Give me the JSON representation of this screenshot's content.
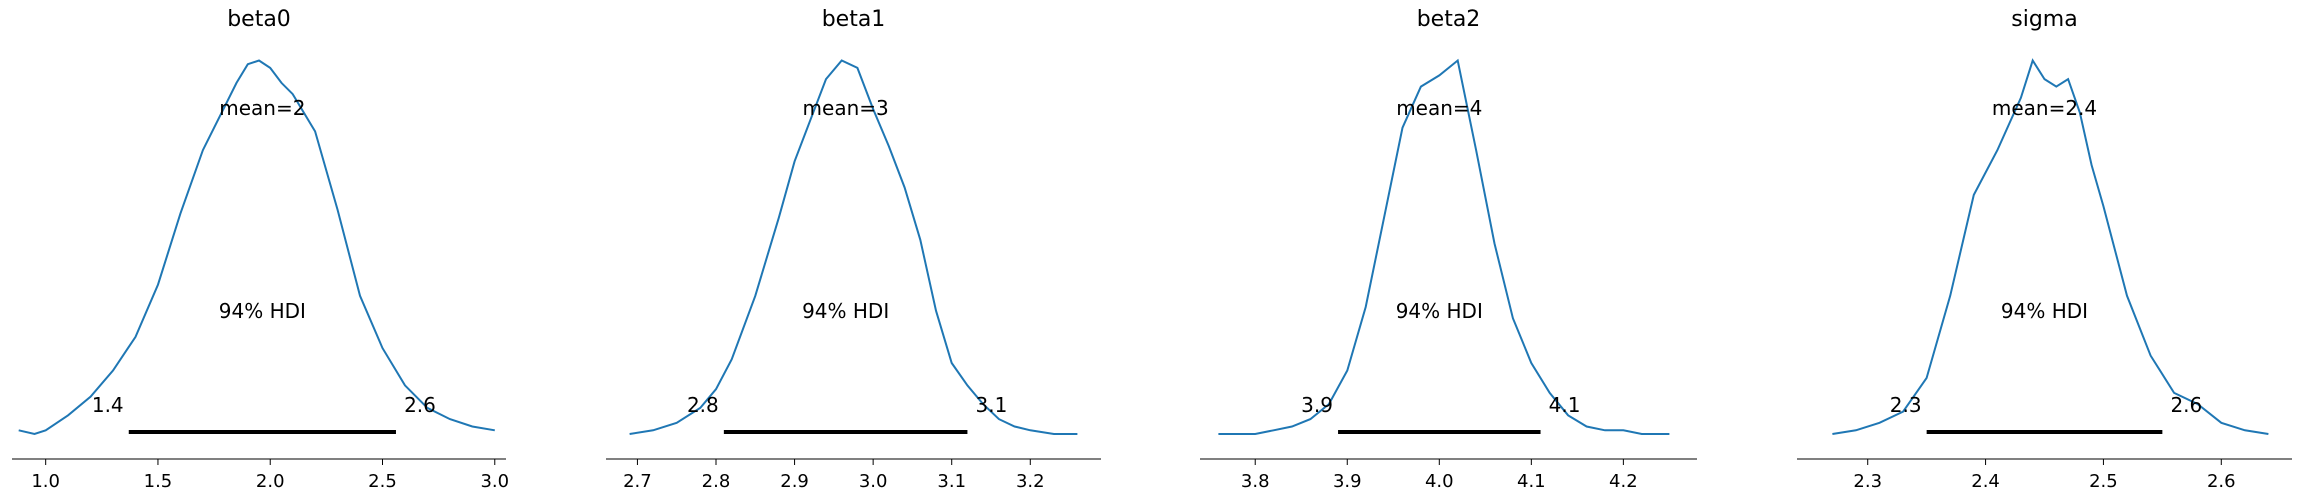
{
  "chart_data": [
    {
      "type": "line",
      "title": "beta0",
      "mean_label": "mean=2",
      "hdi_label": "94% HDI",
      "hdi": [
        1.37,
        2.56
      ],
      "hdi_low_label": "1.4",
      "hdi_high_label": "2.6",
      "xlim": [
        0.85,
        3.05
      ],
      "ylim": [
        0,
        1.02
      ],
      "xticks": [
        1.0,
        1.5,
        2.0,
        2.5,
        3.0
      ],
      "xtick_labels": [
        "1.0",
        "1.5",
        "2.0",
        "2.5",
        "3.0"
      ],
      "color": "#1f77b4",
      "x": [
        0.88,
        0.95,
        1.0,
        1.1,
        1.2,
        1.3,
        1.4,
        1.5,
        1.6,
        1.7,
        1.8,
        1.85,
        1.9,
        1.95,
        2.0,
        2.05,
        2.1,
        2.2,
        2.3,
        2.4,
        2.5,
        2.6,
        2.7,
        2.8,
        2.9,
        3.0
      ],
      "y": [
        0.01,
        0.0,
        0.01,
        0.05,
        0.1,
        0.17,
        0.26,
        0.4,
        0.59,
        0.76,
        0.88,
        0.94,
        0.99,
        1.0,
        0.98,
        0.94,
        0.91,
        0.81,
        0.6,
        0.37,
        0.23,
        0.13,
        0.07,
        0.04,
        0.02,
        0.01
      ]
    },
    {
      "type": "line",
      "title": "beta1",
      "mean_label": "mean=3",
      "hdi_label": "94% HDI",
      "hdi": [
        2.81,
        3.12
      ],
      "hdi_low_label": "2.8",
      "hdi_high_label": "3.1",
      "xlim": [
        2.66,
        3.29
      ],
      "ylim": [
        0,
        1.02
      ],
      "xticks": [
        2.7,
        2.8,
        2.9,
        3.0,
        3.1,
        3.2
      ],
      "xtick_labels": [
        "2.7",
        "2.8",
        "2.9",
        "3.0",
        "3.1",
        "3.2"
      ],
      "color": "#1f77b4",
      "x": [
        2.69,
        2.72,
        2.75,
        2.78,
        2.8,
        2.82,
        2.85,
        2.88,
        2.9,
        2.92,
        2.94,
        2.96,
        2.98,
        3.0,
        3.02,
        3.04,
        3.06,
        3.08,
        3.1,
        3.12,
        3.14,
        3.16,
        3.18,
        3.2,
        3.23,
        3.26
      ],
      "y": [
        0.0,
        0.01,
        0.03,
        0.07,
        0.12,
        0.2,
        0.37,
        0.58,
        0.73,
        0.84,
        0.95,
        1.0,
        0.98,
        0.87,
        0.77,
        0.66,
        0.52,
        0.33,
        0.19,
        0.13,
        0.08,
        0.04,
        0.02,
        0.01,
        0.0,
        0.0
      ]
    },
    {
      "type": "line",
      "title": "beta2",
      "mean_label": "mean=4",
      "hdi_label": "94% HDI",
      "hdi": [
        3.89,
        4.11
      ],
      "hdi_low_label": "3.9",
      "hdi_high_label": "4.1",
      "xlim": [
        3.74,
        4.28
      ],
      "ylim": [
        0,
        1.02
      ],
      "xticks": [
        3.8,
        3.9,
        4.0,
        4.1,
        4.2
      ],
      "xtick_labels": [
        "3.8",
        "3.9",
        "4.0",
        "4.1",
        "4.2"
      ],
      "color": "#1f77b4",
      "x": [
        3.76,
        3.78,
        3.8,
        3.82,
        3.84,
        3.86,
        3.88,
        3.9,
        3.92,
        3.94,
        3.96,
        3.98,
        4.0,
        4.02,
        4.04,
        4.06,
        4.08,
        4.1,
        4.12,
        4.14,
        4.16,
        4.18,
        4.2,
        4.22,
        4.25
      ],
      "y": [
        0.0,
        0.0,
        0.0,
        0.01,
        0.02,
        0.04,
        0.08,
        0.17,
        0.34,
        0.58,
        0.82,
        0.93,
        0.96,
        1.0,
        0.76,
        0.51,
        0.31,
        0.19,
        0.11,
        0.05,
        0.02,
        0.01,
        0.01,
        0.0,
        0.0
      ]
    },
    {
      "type": "line",
      "title": "sigma",
      "mean_label": "mean=2.4",
      "hdi_label": "94% HDI",
      "hdi": [
        2.35,
        2.55
      ],
      "hdi_low_label": "2.3",
      "hdi_high_label": "2.6",
      "xlim": [
        2.24,
        2.66
      ],
      "ylim": [
        0,
        1.02
      ],
      "xticks": [
        2.3,
        2.4,
        2.5,
        2.6
      ],
      "xtick_labels": [
        "2.3",
        "2.4",
        "2.5",
        "2.6"
      ],
      "color": "#1f77b4",
      "x": [
        2.27,
        2.29,
        2.31,
        2.33,
        2.35,
        2.37,
        2.39,
        2.41,
        2.42,
        2.43,
        2.44,
        2.45,
        2.46,
        2.47,
        2.48,
        2.49,
        2.5,
        2.52,
        2.54,
        2.56,
        2.58,
        2.6,
        2.62,
        2.64
      ],
      "y": [
        0.0,
        0.01,
        0.03,
        0.06,
        0.15,
        0.37,
        0.64,
        0.76,
        0.83,
        0.9,
        1.0,
        0.95,
        0.93,
        0.95,
        0.86,
        0.72,
        0.61,
        0.37,
        0.21,
        0.11,
        0.08,
        0.03,
        0.01,
        0.0
      ]
    }
  ]
}
